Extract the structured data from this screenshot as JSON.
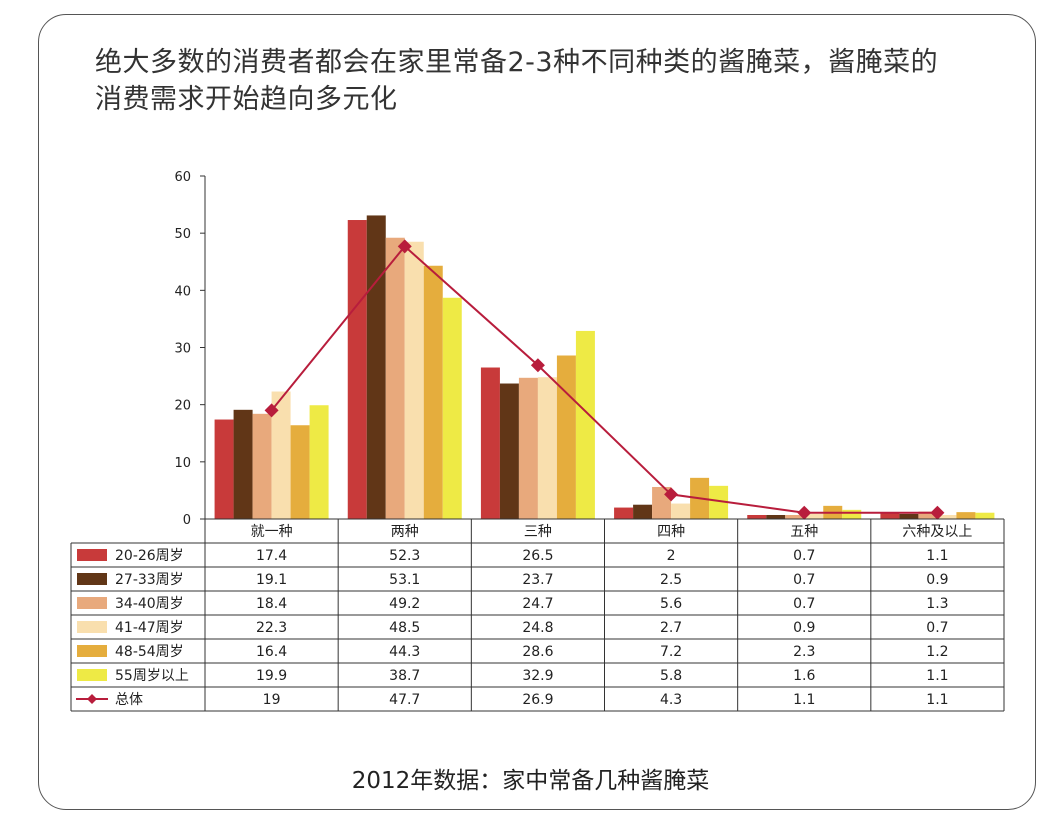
{
  "title_line1": "绝大多数的消费者都会在家里常备2-3种不同种类的酱腌菜，酱腌菜的",
  "title_line2": "消费需求开始趋向多元化",
  "caption": "2012年数据：家中常备几种酱腌菜",
  "chart_data": {
    "type": "bar",
    "categories": [
      "就一种",
      "两种",
      "三种",
      "四种",
      "五种",
      "六种及以上"
    ],
    "ylim": [
      0,
      60
    ],
    "yticks": [
      0,
      10,
      20,
      30,
      40,
      50,
      60
    ],
    "series": [
      {
        "name": "20-26周岁",
        "color": "#c83a3a",
        "values": [
          17.4,
          52.3,
          26.5,
          2,
          0.7,
          1.1
        ]
      },
      {
        "name": "27-33周岁",
        "color": "#613617",
        "values": [
          19.1,
          53.1,
          23.7,
          2.5,
          0.7,
          0.9
        ]
      },
      {
        "name": "34-40周岁",
        "color": "#e8a97c",
        "values": [
          18.4,
          49.2,
          24.7,
          5.6,
          0.7,
          1.3
        ]
      },
      {
        "name": "41-47周岁",
        "color": "#f9dfae",
        "values": [
          22.3,
          48.5,
          24.8,
          2.7,
          0.9,
          0.7
        ]
      },
      {
        "name": "48-54周岁",
        "color": "#e5ad3d",
        "values": [
          16.4,
          44.3,
          28.6,
          7.2,
          2.3,
          1.2
        ]
      },
      {
        "name": "55周岁以上",
        "color": "#eeea45",
        "values": [
          19.9,
          38.7,
          32.9,
          5.8,
          1.6,
          1.1
        ]
      }
    ],
    "line_series": {
      "name": "总体",
      "color": "#b81d3c",
      "values": [
        19,
        47.7,
        26.9,
        4.3,
        1.1,
        1.1
      ]
    },
    "table_labels": [
      [
        "17.4",
        "52.3",
        "26.5",
        "2",
        "0.7",
        "1.1"
      ],
      [
        "19.1",
        "53.1",
        "23.7",
        "2.5",
        "0.7",
        "0.9"
      ],
      [
        "18.4",
        "49.2",
        "24.7",
        "5.6",
        "0.7",
        "1.3"
      ],
      [
        "22.3",
        "48.5",
        "24.8",
        "2.7",
        "0.9",
        "0.7"
      ],
      [
        "16.4",
        "44.3",
        "28.6",
        "7.2",
        "2.3",
        "1.2"
      ],
      [
        "19.9",
        "38.7",
        "32.9",
        "5.8",
        "1.6",
        "1.1"
      ],
      [
        "19",
        "47.7",
        "26.9",
        "4.3",
        "1.1",
        "1.1"
      ]
    ]
  }
}
